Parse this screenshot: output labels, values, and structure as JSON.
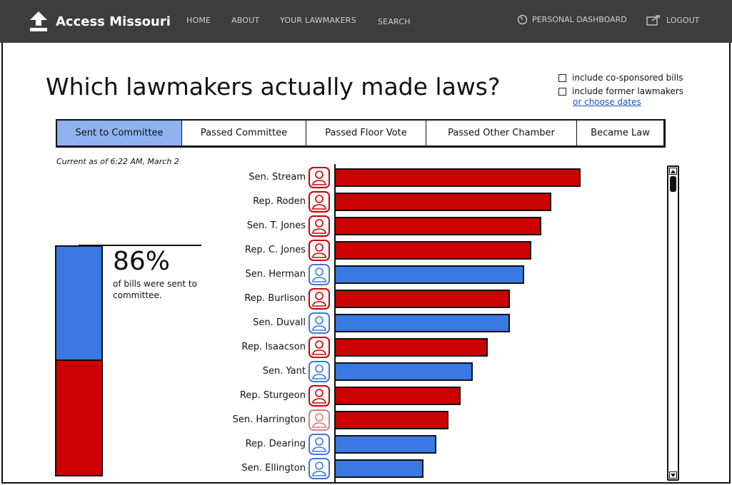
{
  "nav": {
    "brand": "Access Missouri",
    "home": "HOME",
    "about": "ABOUT",
    "your_lawmakers": "YOUR LAWMAKERS",
    "search": "SEARCH",
    "dashboard": "PERSONAL DASHBOARD",
    "logout": "LOGOUT"
  },
  "page": {
    "title": "Which lawmakers actually made laws?",
    "options": {
      "cosponsored": {
        "label": "include co-sponsored bills",
        "checked": false
      },
      "former": {
        "label": "include former lawmakers",
        "checked": false
      },
      "choose_dates": "or choose dates"
    },
    "as_of": "Current as of 6:22 AM, March 2"
  },
  "tabs": [
    {
      "label": "Sent to Committee",
      "active": true
    },
    {
      "label": "Passed Committee",
      "active": false
    },
    {
      "label": "Passed Floor Vote",
      "active": false
    },
    {
      "label": "Passed Other Chamber",
      "active": false
    },
    {
      "label": "Became Law",
      "active": false
    }
  ],
  "summary": {
    "percent": "86%",
    "description": "of bills were sent to committee.",
    "blue_share": 0.5,
    "red_share": 0.5
  },
  "colors": {
    "republican": "#cc0000",
    "republican_faded": "#e07a7a",
    "democrat": "#3a78e3",
    "active_tab": "#8fb3f0",
    "navbar": "#3d3d3d"
  },
  "chart_data": {
    "type": "bar",
    "orientation": "horizontal",
    "categories": [
      "Sen. Stream",
      "Rep. Roden",
      "Sen. T. Jones",
      "Rep. C. Jones",
      "Sen. Herman",
      "Rep. Burlison",
      "Sen. Duvall",
      "Rep. Isaacson",
      "Sen. Yant",
      "Rep. Sturgeon",
      "Sen. Harrington",
      "Rep. Dearing",
      "Sen. Ellington"
    ],
    "values": [
      100,
      88,
      84,
      80,
      77,
      71,
      71,
      62,
      56,
      51,
      46,
      41,
      36
    ],
    "party": [
      "R",
      "R",
      "R",
      "R",
      "D",
      "R",
      "D",
      "R",
      "D",
      "R",
      "R",
      "D",
      "D"
    ],
    "avatar_style": [
      "R",
      "R",
      "R",
      "R",
      "D",
      "R",
      "D",
      "R",
      "D",
      "R",
      "R-faded",
      "D",
      "D"
    ],
    "xlim": [
      0,
      100
    ]
  }
}
